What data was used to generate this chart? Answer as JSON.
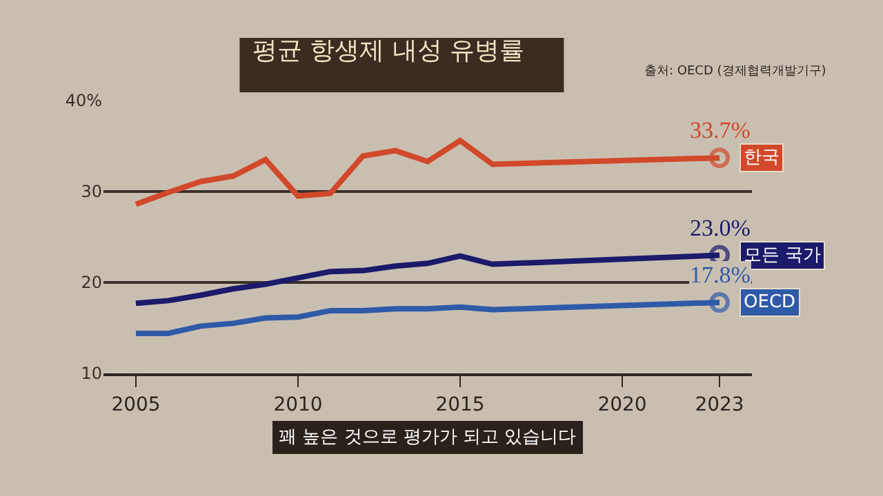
{
  "chart_data": {
    "type": "line",
    "title": "평균 항생제 내성 유병률",
    "annotations": [
      "출처: OECD (경제협력개발기구)",
      "꽤 높은 것으로 평가가 되고 있습니다"
    ],
    "series": [
      {
        "name": "한국",
        "color": "#d1492a",
        "x": [
          2005,
          2006,
          2007,
          2008,
          2009,
          2010,
          2011,
          2012,
          2013,
          2014,
          2015,
          2016,
          2023
        ],
        "values": [
          28.6,
          29.9,
          31.1,
          31.7,
          33.5,
          29.5,
          29.8,
          33.9,
          34.5,
          33.3,
          35.6,
          33.0,
          33.7
        ],
        "value_labels": [
          null,
          null,
          null,
          null,
          null,
          null,
          null,
          null,
          null,
          null,
          null,
          null,
          "33.7%"
        ]
      },
      {
        "name": "모든 국가",
        "color": "#1c1a6b",
        "x": [
          2005,
          2006,
          2007,
          2008,
          2009,
          2010,
          2011,
          2012,
          2013,
          2014,
          2015,
          2016,
          2023
        ],
        "values": [
          17.7,
          18.0,
          18.6,
          19.3,
          19.8,
          20.5,
          21.2,
          21.3,
          21.8,
          22.1,
          22.9,
          22.0,
          23.0
        ],
        "value_labels": [
          null,
          null,
          null,
          null,
          null,
          null,
          null,
          null,
          null,
          null,
          null,
          null,
          "23.0%"
        ]
      },
      {
        "name": "OECD",
        "color": "#2f5aa8",
        "x": [
          2005,
          2006,
          2007,
          2008,
          2009,
          2010,
          2011,
          2012,
          2013,
          2014,
          2015,
          2016,
          2023
        ],
        "values": [
          14.4,
          14.4,
          15.2,
          15.5,
          16.1,
          16.2,
          16.9,
          16.9,
          17.1,
          17.1,
          17.3,
          17.0,
          17.8
        ],
        "value_labels": [
          null,
          null,
          null,
          null,
          null,
          null,
          null,
          null,
          null,
          null,
          null,
          null,
          "17.8%"
        ]
      }
    ],
    "xlim": [
      2004,
      2024
    ],
    "xticks": [
      2005,
      2010,
      2015,
      2020,
      2023
    ],
    "ylim": [
      10,
      40
    ],
    "yticks": [
      10,
      20,
      30,
      {
        "value": 40,
        "label": "40%"
      }
    ],
    "grid": "y",
    "legend": false,
    "line_style": "solid"
  }
}
